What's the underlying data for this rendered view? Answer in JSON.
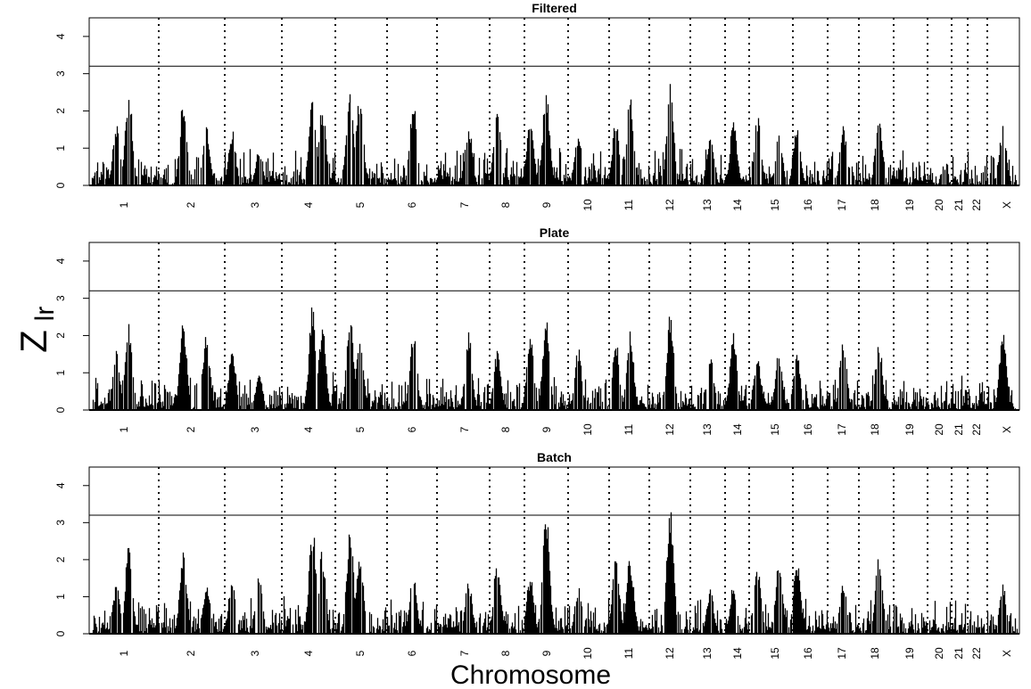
{
  "figure": {
    "ylabel_main": "Z",
    "ylabel_sub": "lr",
    "xlabel": "Chromosome"
  },
  "chart_data": [
    {
      "type": "area",
      "title": "Filtered",
      "ylim": [
        0,
        4.5
      ],
      "y_ticks": [
        0,
        1,
        2,
        3,
        4
      ],
      "threshold": 3.2,
      "chromosomes": [
        "1",
        "2",
        "3",
        "4",
        "5",
        "6",
        "7",
        "8",
        "9",
        "10",
        "11",
        "12",
        "13",
        "14",
        "15",
        "16",
        "17",
        "18",
        "19",
        "20",
        "21",
        "22",
        "X"
      ],
      "peaks": [
        1.7,
        2.6,
        2.3,
        1.6,
        1.5,
        1.0,
        2.65,
        2.2,
        2.75,
        2.6,
        2.3,
        1.7,
        2.1,
        1.95,
        2.55,
        1.4,
        1.85,
        2.4,
        2.8,
        1.45,
        1.8,
        1.9,
        1.4,
        1.7,
        1.6,
        1.85,
        1.6
      ]
    },
    {
      "type": "area",
      "title": "Plate",
      "ylim": [
        0,
        4.5
      ],
      "y_ticks": [
        0,
        1,
        2,
        3,
        4
      ],
      "threshold": 3.2,
      "chromosomes": [
        "1",
        "2",
        "3",
        "4",
        "5",
        "6",
        "7",
        "8",
        "9",
        "10",
        "11",
        "12",
        "13",
        "14",
        "15",
        "16",
        "17",
        "18",
        "19",
        "20",
        "21",
        "22",
        "X"
      ],
      "peaks": [
        1.6,
        2.4,
        2.4,
        2.1,
        1.7,
        1.0,
        2.85,
        2.3,
        2.6,
        2.2,
        2.3,
        2.1,
        1.6,
        2.05,
        2.55,
        1.7,
        1.95,
        2.2,
        2.7,
        1.5,
        2.15,
        1.5,
        1.6,
        1.6,
        2.0,
        1.9,
        2.2
      ]
    },
    {
      "type": "area",
      "title": "Batch",
      "ylim": [
        0,
        4.5
      ],
      "y_ticks": [
        0,
        1,
        2,
        3,
        4
      ],
      "threshold": 3.2,
      "chromosomes": [
        "1",
        "2",
        "3",
        "4",
        "5",
        "6",
        "7",
        "8",
        "9",
        "10",
        "11",
        "12",
        "13",
        "14",
        "15",
        "16",
        "17",
        "18",
        "19",
        "20",
        "21",
        "22",
        "X"
      ],
      "peaks": [
        1.35,
        2.45,
        2.25,
        1.4,
        1.65,
        1.7,
        3.0,
        2.3,
        2.85,
        2.2,
        1.7,
        1.5,
        2.05,
        1.6,
        3.35,
        1.3,
        2.35,
        2.15,
        3.4,
        1.2,
        1.35,
        2.0,
        1.95,
        2.15,
        1.4,
        2.25,
        1.35
      ]
    }
  ]
}
